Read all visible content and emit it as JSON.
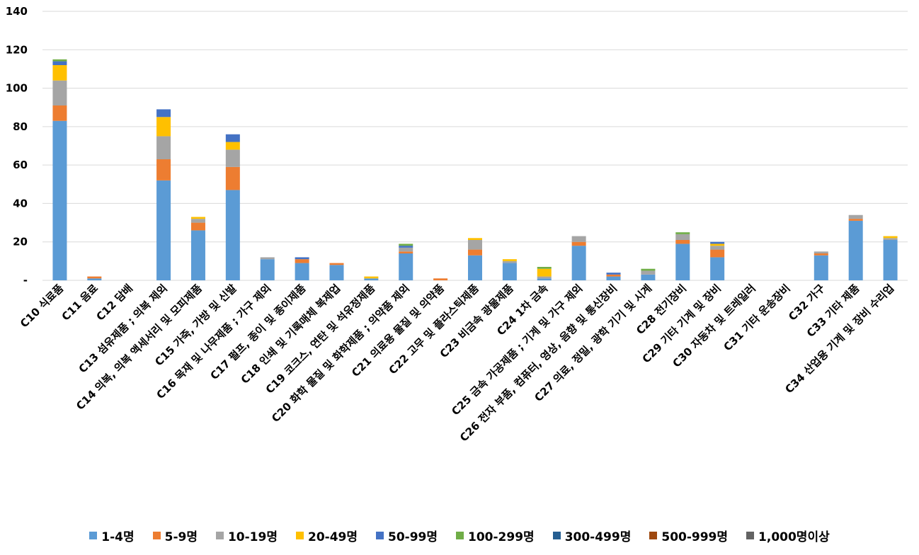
{
  "chart_data": {
    "type": "bar",
    "stacked": true,
    "title": "",
    "xlabel": "",
    "ylabel": "",
    "ylim": [
      0,
      140
    ],
    "yticks": [
      0,
      20,
      40,
      60,
      80,
      100,
      120,
      140
    ],
    "ytick_labels": [
      "-",
      "20",
      "40",
      "60",
      "80",
      "100",
      "120",
      "140"
    ],
    "grid": true,
    "legend_position": "bottom",
    "categories": [
      "C10 식료품",
      "C11 음료",
      "C12 담배",
      "C13 섬유제품 ; 의복 제외",
      "C14 의복, 의복 액세서리 및 모피제품",
      "C15 가죽, 가방 및 신발",
      "C16 목재 및 나무제품 ; 가구 제외",
      "C17 펄프, 종이 및 종이제품",
      "C18 인쇄 및 기록매체 복제업",
      "C19 코크스, 연탄 및 석유정제품",
      "C20 화학 물질 및 화학제품 ; 의약품 제외",
      "C21 의료용 물질 및 의약품",
      "C22 고무 및 플라스틱제품",
      "C23 비금속 광물제품",
      "C24 1차 금속",
      "C25 금속 가공제품 ; 기계 및 가구 제외",
      "C26 전자 부품, 컴퓨터, 영상, 음향 및 통신장비",
      "C27 의료, 정밀, 광학 기기 및 시계",
      "C28 전기장비",
      "C29 기타 기계 및 장비",
      "C30 자동차 및 트레일러",
      "C31 기타 운송장비",
      "C32 가구",
      "C33 기타 제품",
      "C34 산업용 기계 및 장비 수리업"
    ],
    "series": [
      {
        "name": "1-4명",
        "color": "#5B9BD5",
        "values": [
          83,
          1,
          0,
          52,
          26,
          47,
          11,
          9,
          8,
          1,
          14,
          0,
          13,
          9,
          1,
          18,
          2,
          3,
          19,
          12,
          0,
          0,
          13,
          31,
          21
        ]
      },
      {
        "name": "5-9명",
        "color": "#ED7D31",
        "values": [
          8,
          1,
          0,
          11,
          4,
          12,
          0,
          2,
          1,
          0,
          1,
          1,
          3,
          0,
          0,
          2,
          1,
          0,
          2,
          4,
          0,
          0,
          1,
          1,
          0
        ]
      },
      {
        "name": "10-19명",
        "color": "#A5A5A5",
        "values": [
          13,
          0,
          0,
          12,
          2,
          9,
          1,
          0,
          0,
          0,
          2,
          0,
          5,
          1,
          1,
          3,
          0,
          2,
          3,
          2,
          0,
          0,
          1,
          2,
          1
        ]
      },
      {
        "name": "20-49명",
        "color": "#FFC000",
        "values": [
          8,
          0,
          0,
          10,
          1,
          4,
          0,
          0,
          0,
          1,
          0,
          0,
          1,
          1,
          4,
          0,
          0,
          0,
          0,
          1,
          0,
          0,
          0,
          0,
          1
        ]
      },
      {
        "name": "50-99명",
        "color": "#4472C4",
        "values": [
          2,
          0,
          0,
          4,
          0,
          4,
          0,
          1,
          0,
          0,
          1,
          0,
          0,
          0,
          0,
          0,
          1,
          0,
          0,
          1,
          0,
          0,
          0,
          0,
          0
        ]
      },
      {
        "name": "100-299명",
        "color": "#70AD47",
        "values": [
          1,
          0,
          0,
          0,
          0,
          0,
          0,
          0,
          0,
          0,
          1,
          0,
          0,
          0,
          1,
          0,
          0,
          1,
          1,
          0,
          0,
          0,
          0,
          0,
          0
        ]
      },
      {
        "name": "300-499명",
        "color": "#255E91",
        "values": [
          0,
          0,
          0,
          0,
          0,
          0,
          0,
          0,
          0,
          0,
          0,
          0,
          0,
          0,
          0,
          0,
          0,
          0,
          0,
          0,
          0,
          0,
          0,
          0,
          0
        ]
      },
      {
        "name": "500-999명",
        "color": "#9E480E",
        "values": [
          0,
          0,
          0,
          0,
          0,
          0,
          0,
          0,
          0,
          0,
          0,
          0,
          0,
          0,
          0,
          0,
          0,
          0,
          0,
          0,
          0,
          0,
          0,
          0,
          0
        ]
      },
      {
        "name": "1,000명이상",
        "color": "#636363",
        "values": [
          0,
          0,
          0,
          0,
          0,
          0,
          0,
          0,
          0,
          0,
          0,
          0,
          0,
          0,
          0,
          0,
          0,
          0,
          0,
          0,
          0,
          0,
          0,
          0,
          0
        ]
      }
    ]
  }
}
